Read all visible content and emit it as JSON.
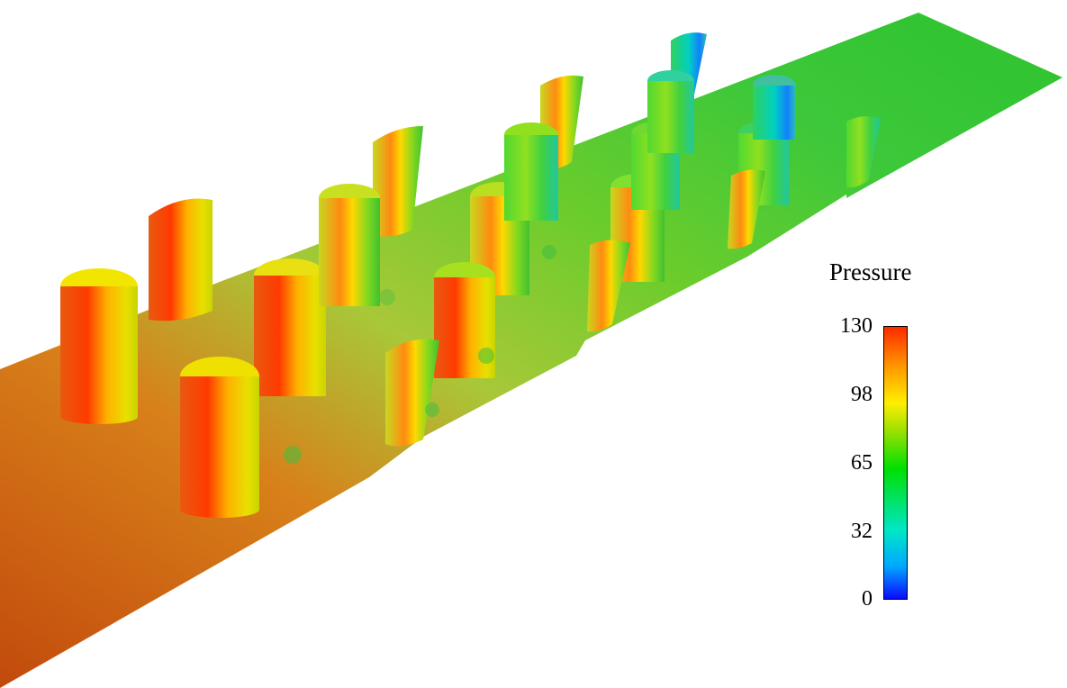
{
  "legend": {
    "title": "Pressure",
    "ticks": [
      "130",
      "98",
      "65",
      "32",
      "0"
    ],
    "range": [
      0,
      130
    ],
    "colormap": [
      "#0a0aff",
      "#00a8ff",
      "#00e6c8",
      "#00e000",
      "#9ee000",
      "#ffef00",
      "#ff9a00",
      "#ff2a00"
    ]
  },
  "scene": {
    "description_colors": {
      "inlet_plate": "#c8520e",
      "mid_plate": "#8fcf2a",
      "outlet_plate": "#2fc42f",
      "cylinder_hot": "#ff3c00",
      "cylinder_warm": "#e8e600",
      "cylinder_cool": "#40d040"
    }
  }
}
